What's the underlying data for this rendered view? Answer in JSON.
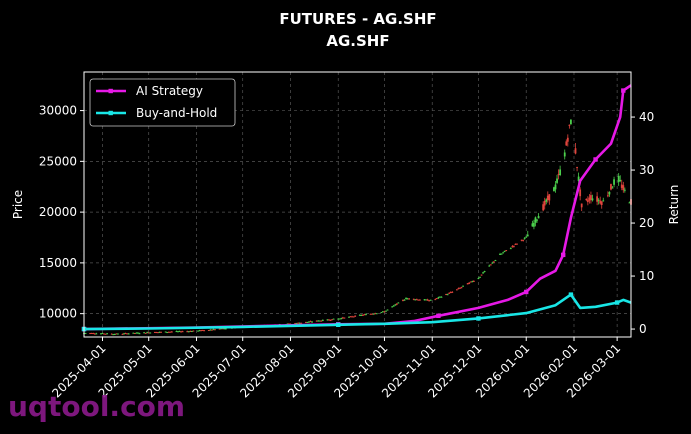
{
  "chart_data": {
    "type": "line",
    "title": "FUTURES - AG.SHF",
    "subtitle": "AG.SHF",
    "ylabel": "Price",
    "y2label": "Return",
    "ylim": [
      7700,
      33800
    ],
    "y2lim": [
      -1.5,
      48.5
    ],
    "yticks": [
      10000,
      15000,
      20000,
      25000,
      30000
    ],
    "y2ticks": [
      0,
      10,
      20,
      30,
      40
    ],
    "xticks": [
      "2025-04-01",
      "2025-05-01",
      "2025-06-01",
      "2025-07-01",
      "2025-08-01",
      "2025-09-01",
      "2025-10-01",
      "2025-11-01",
      "2025-12-01",
      "2026-01-01",
      "2026-02-01",
      "2026-03-01"
    ],
    "xrange": [
      "2025-03-20",
      "2026-03-10"
    ],
    "grid": true,
    "legend_position": "top-left",
    "price_colors": {
      "up": "#4cd04c",
      "down": "#e0443c"
    },
    "price_anchors": [
      [
        "2025-03-20",
        8100
      ],
      [
        "2025-04-10",
        8000
      ],
      [
        "2025-05-01",
        8150
      ],
      [
        "2025-06-01",
        8300
      ],
      [
        "2025-07-01",
        8700
      ],
      [
        "2025-08-01",
        9000
      ],
      [
        "2025-09-01",
        9500
      ],
      [
        "2025-10-01",
        10200
      ],
      [
        "2025-10-15",
        11500
      ],
      [
        "2025-11-01",
        11300
      ],
      [
        "2025-11-15",
        12200
      ],
      [
        "2025-12-01",
        13500
      ],
      [
        "2025-12-15",
        15800
      ],
      [
        "2026-01-01",
        17500
      ],
      [
        "2026-01-10",
        20000
      ],
      [
        "2026-01-20",
        22500
      ],
      [
        "2026-01-25",
        25000
      ],
      [
        "2026-01-30",
        29000
      ],
      [
        "2026-02-02",
        26000
      ],
      [
        "2026-02-06",
        20500
      ],
      [
        "2026-02-12",
        21500
      ],
      [
        "2026-02-20",
        21000
      ],
      [
        "2026-03-01",
        23500
      ],
      [
        "2026-03-06",
        22000
      ],
      [
        "2026-03-10",
        21000
      ]
    ],
    "series": [
      {
        "name": "AI Strategy",
        "color": "#e619e6",
        "values": [
          [
            "2025-03-20",
            0.0
          ],
          [
            "2025-06-01",
            0.3
          ],
          [
            "2025-08-01",
            0.7
          ],
          [
            "2025-09-01",
            0.9
          ],
          [
            "2025-10-01",
            1.0
          ],
          [
            "2025-10-20",
            1.5
          ],
          [
            "2025-11-05",
            2.5
          ],
          [
            "2025-12-01",
            4.0
          ],
          [
            "2025-12-20",
            5.5
          ],
          [
            "2026-01-01",
            7.0
          ],
          [
            "2026-01-10",
            9.5
          ],
          [
            "2026-01-20",
            11.0
          ],
          [
            "2026-01-25",
            14.0
          ],
          [
            "2026-01-30",
            21.0
          ],
          [
            "2026-02-05",
            28.0
          ],
          [
            "2026-02-15",
            32.0
          ],
          [
            "2026-02-25",
            35.0
          ],
          [
            "2026-03-03",
            40.0
          ],
          [
            "2026-03-05",
            45.0
          ],
          [
            "2026-03-10",
            46.0
          ]
        ]
      },
      {
        "name": "Buy-and-Hold",
        "color": "#19e6e6",
        "values": [
          [
            "2025-03-20",
            0.0
          ],
          [
            "2025-05-01",
            0.1
          ],
          [
            "2025-07-01",
            0.4
          ],
          [
            "2025-09-01",
            0.8
          ],
          [
            "2025-10-01",
            1.0
          ],
          [
            "2025-11-01",
            1.3
          ],
          [
            "2025-12-01",
            2.0
          ],
          [
            "2026-01-01",
            3.0
          ],
          [
            "2026-01-20",
            4.5
          ],
          [
            "2026-01-30",
            6.5
          ],
          [
            "2026-02-05",
            4.0
          ],
          [
            "2026-02-15",
            4.2
          ],
          [
            "2026-03-01",
            5.0
          ],
          [
            "2026-03-05",
            5.5
          ],
          [
            "2026-03-10",
            5.0
          ]
        ]
      }
    ]
  },
  "watermark": "uqtool.com"
}
